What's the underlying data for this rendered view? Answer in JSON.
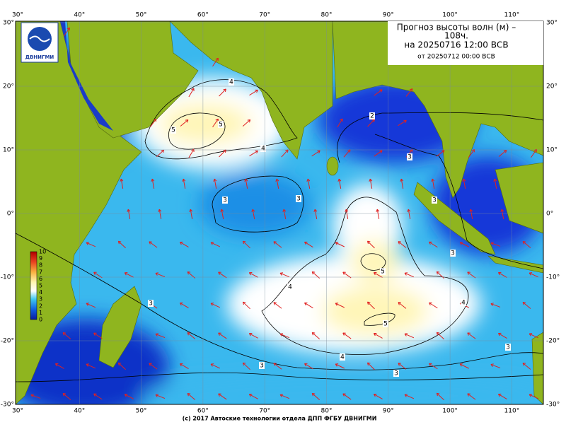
{
  "header": {
    "title_lines": [
      "Прогноз высоты волн (м) –",
      "108ч.",
      "на 20250716 12:00 ВСВ"
    ],
    "subtitle": "от 20250712 00:00 ВСВ"
  },
  "logo": {
    "text": "ДВНИГМИ"
  },
  "map": {
    "lon_labels": [
      "30°",
      "40°",
      "50°",
      "60°",
      "70°",
      "80°",
      "90°",
      "100°",
      "110°"
    ],
    "lat_labels": [
      "30°",
      "20°",
      "10°",
      "0°",
      "-10°",
      "-20°",
      "-30°"
    ],
    "contour_labels": [
      "4",
      "5",
      "5",
      "4",
      "3",
      "3",
      "2",
      "3",
      "3",
      "4",
      "5",
      "5",
      "4",
      "4",
      "3",
      "3",
      "3",
      "3",
      "3"
    ]
  },
  "colorbar": {
    "labels": [
      "10",
      "9",
      "8",
      "7",
      "6",
      "5",
      "4",
      "3",
      "2",
      "1",
      "0"
    ]
  },
  "footer": "(c) 2017 Автоские технологии отдела ДПП ФГБУ ДВНИГМИ"
}
